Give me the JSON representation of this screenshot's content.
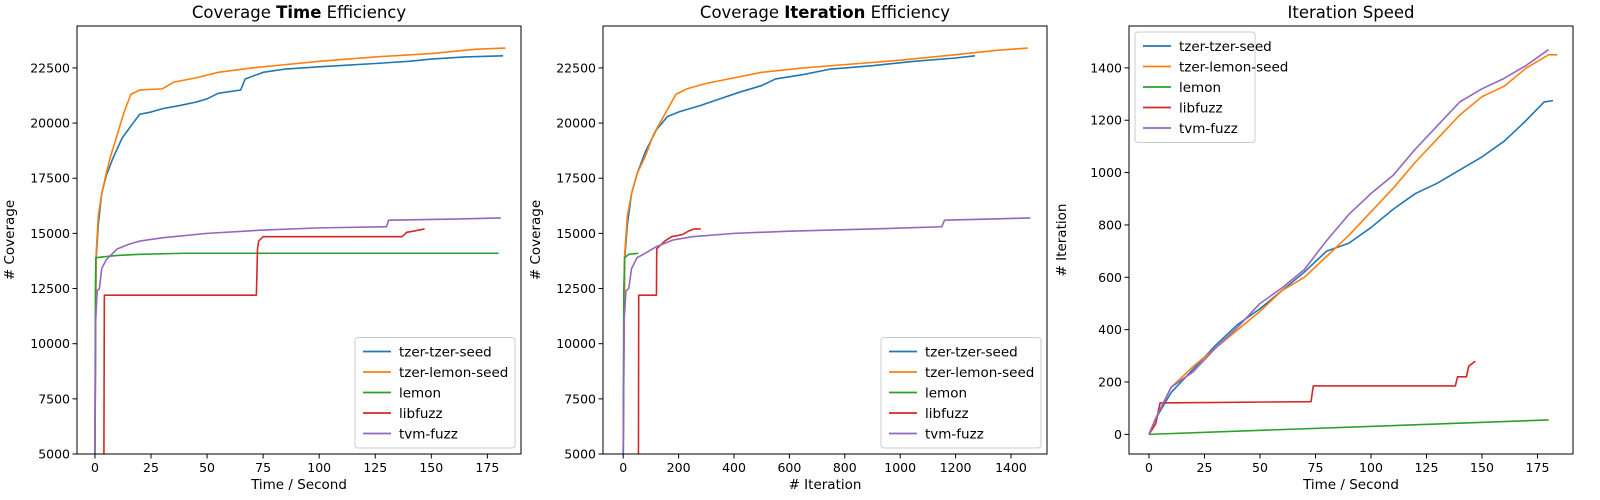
{
  "chart_data": [
    {
      "type": "line",
      "title_parts": [
        "Coverage ",
        "Time",
        " Efficiency"
      ],
      "xlabel": "Time / Second",
      "ylabel": "# Coverage",
      "xlim": [
        -8,
        190
      ],
      "ylim": [
        5000,
        24400
      ],
      "xticks": [
        0,
        25,
        50,
        75,
        100,
        125,
        150,
        175
      ],
      "yticks": [
        5000,
        7500,
        10000,
        12500,
        15000,
        17500,
        20000,
        22500
      ],
      "legend_loc": "lower-right",
      "grid": false,
      "series": [
        {
          "name": "tzer-tzer-seed",
          "color": "#1f77b4",
          "points": [
            [
              0,
              5000
            ],
            [
              0.5,
              13800
            ],
            [
              1.5,
              15400
            ],
            [
              3,
              16800
            ],
            [
              5,
              17600
            ],
            [
              8,
              18400
            ],
            [
              12,
              19300
            ],
            [
              17,
              20000
            ],
            [
              20,
              20400
            ],
            [
              25,
              20500
            ],
            [
              30,
              20650
            ],
            [
              38,
              20800
            ],
            [
              45,
              20950
            ],
            [
              50,
              21100
            ],
            [
              55,
              21350
            ],
            [
              65,
              21500
            ],
            [
              67,
              22000
            ],
            [
              75,
              22300
            ],
            [
              85,
              22450
            ],
            [
              100,
              22550
            ],
            [
              125,
              22700
            ],
            [
              140,
              22800
            ],
            [
              150,
              22900
            ],
            [
              165,
              23000
            ],
            [
              182,
              23050
            ]
          ]
        },
        {
          "name": "tzer-lemon-seed",
          "color": "#ff7f0e",
          "points": [
            [
              0,
              5000
            ],
            [
              0.5,
              14000
            ],
            [
              1.5,
              15800
            ],
            [
              3,
              16800
            ],
            [
              5,
              17700
            ],
            [
              7,
              18500
            ],
            [
              10,
              19500
            ],
            [
              13,
              20500
            ],
            [
              16,
              21300
            ],
            [
              20,
              21500
            ],
            [
              30,
              21550
            ],
            [
              35,
              21850
            ],
            [
              45,
              22050
            ],
            [
              55,
              22300
            ],
            [
              70,
              22500
            ],
            [
              85,
              22650
            ],
            [
              100,
              22800
            ],
            [
              125,
              23000
            ],
            [
              150,
              23150
            ],
            [
              170,
              23350
            ],
            [
              183,
              23400
            ]
          ]
        },
        {
          "name": "lemon",
          "color": "#2ca02c",
          "points": [
            [
              0,
              5000
            ],
            [
              0.2,
              12300
            ],
            [
              0.4,
              13900
            ],
            [
              5,
              13950
            ],
            [
              10,
              14000
            ],
            [
              20,
              14050
            ],
            [
              40,
              14100
            ],
            [
              180,
              14100
            ]
          ]
        },
        {
          "name": "libfuzz",
          "color": "#d62728",
          "points": [
            [
              4,
              5000
            ],
            [
              4.2,
              12200
            ],
            [
              72,
              12200
            ],
            [
              72.5,
              14300
            ],
            [
              73,
              14650
            ],
            [
              75,
              14850
            ],
            [
              137,
              14850
            ],
            [
              139,
              15050
            ],
            [
              142,
              15100
            ],
            [
              147,
              15200
            ]
          ]
        },
        {
          "name": "tvm-fuzz",
          "color": "#9467bd",
          "points": [
            [
              0,
              5000
            ],
            [
              0.3,
              11000
            ],
            [
              1,
              12400
            ],
            [
              2,
              12500
            ],
            [
              3,
              13400
            ],
            [
              5,
              13800
            ],
            [
              8,
              14100
            ],
            [
              10,
              14300
            ],
            [
              15,
              14500
            ],
            [
              20,
              14650
            ],
            [
              30,
              14800
            ],
            [
              50,
              15000
            ],
            [
              75,
              15150
            ],
            [
              100,
              15250
            ],
            [
              130,
              15300
            ],
            [
              131,
              15600
            ],
            [
              160,
              15650
            ],
            [
              181,
              15700
            ]
          ]
        }
      ]
    },
    {
      "type": "line",
      "title_parts": [
        "Coverage ",
        "Iteration",
        " Efficiency"
      ],
      "xlabel": "# Iteration",
      "ylabel": "# Coverage",
      "xlim": [
        -73,
        1530
      ],
      "ylim": [
        5000,
        24400
      ],
      "xticks": [
        0,
        200,
        400,
        600,
        800,
        1000,
        1200,
        1400
      ],
      "yticks": [
        5000,
        7500,
        10000,
        12500,
        15000,
        17500,
        20000,
        22500
      ],
      "legend_loc": "lower-right",
      "grid": false,
      "series": [
        {
          "name": "tzer-tzer-seed",
          "color": "#1f77b4",
          "points": [
            [
              0,
              5000
            ],
            [
              5,
              13800
            ],
            [
              15,
              15400
            ],
            [
              30,
              16800
            ],
            [
              50,
              17700
            ],
            [
              80,
              18700
            ],
            [
              120,
              19700
            ],
            [
              160,
              20300
            ],
            [
              200,
              20500
            ],
            [
              280,
              20800
            ],
            [
              350,
              21100
            ],
            [
              420,
              21400
            ],
            [
              500,
              21700
            ],
            [
              550,
              22000
            ],
            [
              650,
              22200
            ],
            [
              750,
              22450
            ],
            [
              900,
              22600
            ],
            [
              1050,
              22800
            ],
            [
              1200,
              22950
            ],
            [
              1270,
              23050
            ]
          ]
        },
        {
          "name": "tzer-lemon-seed",
          "color": "#ff7f0e",
          "points": [
            [
              0,
              5000
            ],
            [
              5,
              14000
            ],
            [
              15,
              15800
            ],
            [
              30,
              16800
            ],
            [
              50,
              17700
            ],
            [
              80,
              18500
            ],
            [
              110,
              19500
            ],
            [
              150,
              20400
            ],
            [
              190,
              21300
            ],
            [
              230,
              21550
            ],
            [
              300,
              21800
            ],
            [
              400,
              22050
            ],
            [
              500,
              22300
            ],
            [
              650,
              22500
            ],
            [
              800,
              22650
            ],
            [
              1000,
              22850
            ],
            [
              1200,
              23100
            ],
            [
              1350,
              23300
            ],
            [
              1460,
              23400
            ]
          ]
        },
        {
          "name": "lemon",
          "color": "#2ca02c",
          "points": [
            [
              0,
              5000
            ],
            [
              2,
              12300
            ],
            [
              5,
              13900
            ],
            [
              20,
              14050
            ],
            [
              55,
              14100
            ]
          ]
        },
        {
          "name": "libfuzz",
          "color": "#d62728",
          "points": [
            [
              55,
              5000
            ],
            [
              56,
              12200
            ],
            [
              120,
              12200
            ],
            [
              121,
              14300
            ],
            [
              150,
              14650
            ],
            [
              175,
              14850
            ],
            [
              215,
              14950
            ],
            [
              235,
              15100
            ],
            [
              255,
              15200
            ],
            [
              280,
              15200
            ]
          ]
        },
        {
          "name": "tvm-fuzz",
          "color": "#9467bd",
          "points": [
            [
              0,
              5000
            ],
            [
              3,
              11000
            ],
            [
              10,
              12400
            ],
            [
              20,
              12500
            ],
            [
              30,
              13400
            ],
            [
              50,
              13900
            ],
            [
              80,
              14100
            ],
            [
              120,
              14400
            ],
            [
              180,
              14700
            ],
            [
              250,
              14850
            ],
            [
              400,
              15000
            ],
            [
              600,
              15100
            ],
            [
              900,
              15200
            ],
            [
              1150,
              15300
            ],
            [
              1160,
              15600
            ],
            [
              1470,
              15700
            ]
          ]
        }
      ]
    },
    {
      "type": "line",
      "title": "Iteration Speed",
      "xlabel": "Time / Second",
      "ylabel": "# Iteration",
      "xlim": [
        -9,
        191
      ],
      "ylim": [
        -75,
        1560
      ],
      "xticks": [
        0,
        25,
        50,
        75,
        100,
        125,
        150,
        175
      ],
      "yticks": [
        0,
        200,
        400,
        600,
        800,
        1000,
        1200,
        1400
      ],
      "legend_loc": "upper-left",
      "grid": false,
      "series": [
        {
          "name": "tzer-tzer-seed",
          "color": "#1f77b4",
          "points": [
            [
              0,
              0
            ],
            [
              3,
              60
            ],
            [
              10,
              160
            ],
            [
              20,
              250
            ],
            [
              30,
              340
            ],
            [
              40,
              420
            ],
            [
              50,
              480
            ],
            [
              60,
              550
            ],
            [
              70,
              620
            ],
            [
              80,
              700
            ],
            [
              90,
              730
            ],
            [
              100,
              790
            ],
            [
              110,
              860
            ],
            [
              120,
              920
            ],
            [
              130,
              960
            ],
            [
              140,
              1010
            ],
            [
              150,
              1060
            ],
            [
              160,
              1120
            ],
            [
              170,
              1200
            ],
            [
              178,
              1270
            ],
            [
              182,
              1275
            ]
          ]
        },
        {
          "name": "tzer-lemon-seed",
          "color": "#ff7f0e",
          "points": [
            [
              0,
              0
            ],
            [
              3,
              60
            ],
            [
              10,
              180
            ],
            [
              20,
              260
            ],
            [
              30,
              330
            ],
            [
              40,
              400
            ],
            [
              50,
              470
            ],
            [
              60,
              550
            ],
            [
              70,
              600
            ],
            [
              80,
              680
            ],
            [
              90,
              760
            ],
            [
              100,
              850
            ],
            [
              110,
              940
            ],
            [
              120,
              1040
            ],
            [
              130,
              1130
            ],
            [
              140,
              1220
            ],
            [
              150,
              1290
            ],
            [
              160,
              1330
            ],
            [
              170,
              1400
            ],
            [
              180,
              1450
            ],
            [
              184,
              1450
            ]
          ]
        },
        {
          "name": "lemon",
          "color": "#2ca02c",
          "points": [
            [
              0,
              0
            ],
            [
              180,
              55
            ]
          ]
        },
        {
          "name": "libfuzz",
          "color": "#d62728",
          "points": [
            [
              0,
              0
            ],
            [
              3,
              40
            ],
            [
              5,
              120
            ],
            [
              73,
              125
            ],
            [
              74,
              185
            ],
            [
              138,
              185
            ],
            [
              139,
              220
            ],
            [
              143,
              220
            ],
            [
              144,
              260
            ],
            [
              147,
              280
            ]
          ]
        },
        {
          "name": "tvm-fuzz",
          "color": "#9467bd",
          "points": [
            [
              0,
              0
            ],
            [
              3,
              60
            ],
            [
              10,
              180
            ],
            [
              20,
              240
            ],
            [
              30,
              330
            ],
            [
              40,
              410
            ],
            [
              50,
              500
            ],
            [
              60,
              560
            ],
            [
              70,
              630
            ],
            [
              80,
              740
            ],
            [
              90,
              840
            ],
            [
              100,
              920
            ],
            [
              110,
              990
            ],
            [
              120,
              1090
            ],
            [
              130,
              1180
            ],
            [
              140,
              1270
            ],
            [
              150,
              1320
            ],
            [
              160,
              1360
            ],
            [
              170,
              1410
            ],
            [
              180,
              1470
            ]
          ]
        }
      ]
    }
  ]
}
